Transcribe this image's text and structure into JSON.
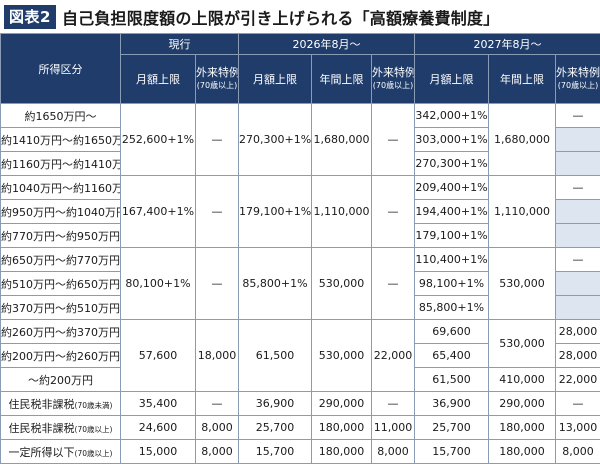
{
  "title": {
    "badge": "図表2",
    "text": "自己負担限度額の上限が引き上げられる「高額療養費制度」"
  },
  "header": {
    "category": "所得区分",
    "current": "現行",
    "y2026": "2026年8月～",
    "y2027": "2027年8月～",
    "monthly": "月額上限",
    "annual": "年間上限",
    "outpatient": "外来特例",
    "outpatient_note": "(70歳以上)"
  },
  "rows": [
    {
      "label": "約1650万円～"
    },
    {
      "label": "約1410万円～約1650万円"
    },
    {
      "label": "約1160万円～約1410万円"
    },
    {
      "label": "約1040万円～約1160万円"
    },
    {
      "label": "約950万円～約1040万円"
    },
    {
      "label": "約770万円～約950万円"
    },
    {
      "label": "約650万円～約770万円"
    },
    {
      "label": "約510万円～約650万円"
    },
    {
      "label": "約370万円～約510万円"
    },
    {
      "label": "約260万円～約370万円"
    },
    {
      "label": "約200万円～約260万円"
    },
    {
      "label": "～約200万円"
    },
    {
      "label": "住民税非課税",
      "note": "(70歳未満)"
    },
    {
      "label": "住民税非課税",
      "note": "(70歳以上)"
    },
    {
      "label": "一定所得以下",
      "note": "(70歳以上)"
    }
  ],
  "current": {
    "g1": {
      "monthly": "252,600+1%",
      "outpatient": "—"
    },
    "g2": {
      "monthly": "167,400+1%",
      "outpatient": "—"
    },
    "g3": {
      "monthly": "80,100+1%",
      "outpatient": "—"
    },
    "g4": {
      "monthly": "57,600",
      "outpatient": "18,000"
    },
    "r13": {
      "monthly": "35,400",
      "outpatient": "—"
    },
    "r14": {
      "monthly": "24,600",
      "outpatient": "8,000"
    },
    "r15": {
      "monthly": "15,000",
      "outpatient": "8,000"
    }
  },
  "y2026": {
    "g1": {
      "monthly": "270,300+1%",
      "annual": "1,680,000",
      "outpatient": "—"
    },
    "g2": {
      "monthly": "179,100+1%",
      "annual": "1,110,000",
      "outpatient": "—"
    },
    "g3": {
      "monthly": "85,800+1%",
      "annual": "530,000",
      "outpatient": "—"
    },
    "g4": {
      "monthly": "61,500",
      "annual": "530,000",
      "outpatient": "22,000"
    },
    "r13": {
      "monthly": "36,900",
      "annual": "290,000",
      "outpatient": "—"
    },
    "r14": {
      "monthly": "25,700",
      "annual": "180,000",
      "outpatient": "11,000"
    },
    "r15": {
      "monthly": "15,700",
      "annual": "180,000",
      "outpatient": "8,000"
    }
  },
  "y2027": {
    "monthly": [
      "342,000+1%",
      "303,000+1%",
      "270,300+1%",
      "209,400+1%",
      "194,400+1%",
      "179,100+1%",
      "110,400+1%",
      "98,100+1%",
      "85,800+1%",
      "69,600",
      "65,400",
      "61,500",
      "36,900",
      "25,700",
      "15,700"
    ],
    "annual": {
      "g1": "1,680,000",
      "g2": "1,110,000",
      "g3": "530,000",
      "g4a": "530,000",
      "r12": "410,000",
      "r13": "290,000",
      "r14": "180,000",
      "r15": "180,000"
    },
    "outpatient": {
      "r1": "—",
      "r4": "—",
      "r7": "—",
      "r10": "28,000",
      "r11": "28,000",
      "r12": "22,000",
      "r13": "—",
      "r14": "13,000",
      "r15": "8,000"
    }
  }
}
